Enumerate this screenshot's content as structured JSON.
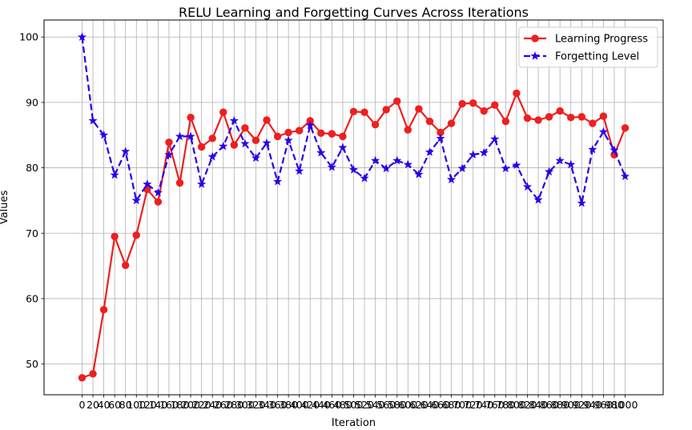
{
  "chart_data": {
    "type": "line",
    "title": "RELU Learning and Forgetting Curves Across Iterations",
    "xlabel": "Iteration",
    "ylabel": "Values",
    "xlim": [
      -70,
      1070
    ],
    "ylim": [
      45.3,
      102.6
    ],
    "yticks": [
      50,
      60,
      70,
      80,
      90,
      100
    ],
    "grid": true,
    "legend_position": "top-right",
    "x": [
      0,
      20,
      40,
      60,
      80,
      100,
      120,
      140,
      160,
      180,
      200,
      220,
      240,
      260,
      280,
      300,
      320,
      340,
      360,
      380,
      400,
      420,
      440,
      460,
      480,
      500,
      520,
      540,
      560,
      580,
      600,
      620,
      640,
      660,
      680,
      700,
      720,
      740,
      760,
      780,
      800,
      820,
      840,
      860,
      880,
      900,
      920,
      940,
      960,
      980,
      1000
    ],
    "xtick_labels": [
      "0",
      "20",
      "40",
      "60",
      "80",
      "100",
      "120",
      "140",
      "160",
      "180",
      "200",
      "220",
      "240",
      "260",
      "280",
      "300",
      "320",
      "340",
      "360",
      "380",
      "400",
      "420",
      "440",
      "460",
      "480",
      "500",
      "520",
      "540",
      "560",
      "580",
      "600",
      "620",
      "640",
      "660",
      "680",
      "700",
      "720",
      "740",
      "760",
      "780",
      "800",
      "820",
      "840",
      "860",
      "880",
      "900",
      "920",
      "940",
      "960",
      "980",
      "1000"
    ],
    "series": [
      {
        "name": "Learning Progress",
        "color": "#ee1f1f",
        "linestyle": "solid",
        "marker": "circle",
        "values": [
          47.9,
          48.5,
          58.3,
          69.5,
          65.1,
          69.7,
          76.7,
          74.8,
          83.9,
          77.7,
          87.7,
          83.2,
          84.5,
          88.5,
          83.5,
          86.1,
          84.2,
          87.3,
          84.8,
          85.4,
          85.7,
          87.2,
          85.3,
          85.2,
          84.8,
          88.6,
          88.5,
          86.6,
          88.9,
          90.2,
          85.8,
          89.0,
          87.1,
          85.4,
          86.8,
          89.8,
          89.9,
          88.7,
          89.6,
          87.1,
          91.4,
          87.6,
          87.3,
          87.8,
          88.7,
          87.7,
          87.8,
          86.8,
          87.9,
          82.0,
          86.1
        ]
      },
      {
        "name": "Forgetting Level",
        "color": "#2a00e8",
        "linestyle": "dashed",
        "marker": "star",
        "values": [
          100.0,
          87.2,
          85.0,
          78.9,
          82.5,
          75.0,
          77.5,
          76.2,
          82.0,
          84.8,
          84.8,
          77.5,
          81.7,
          83.3,
          87.2,
          83.7,
          81.5,
          83.8,
          77.9,
          84.2,
          79.5,
          86.5,
          82.3,
          80.1,
          83.1,
          79.7,
          78.4,
          81.1,
          79.9,
          81.1,
          80.5,
          79.0,
          82.4,
          84.5,
          78.2,
          79.9,
          82.0,
          82.3,
          84.4,
          79.9,
          80.4,
          77.1,
          75.1,
          79.4,
          81.1,
          80.5,
          74.6,
          82.8,
          85.5,
          82.7,
          78.7
        ]
      }
    ]
  }
}
